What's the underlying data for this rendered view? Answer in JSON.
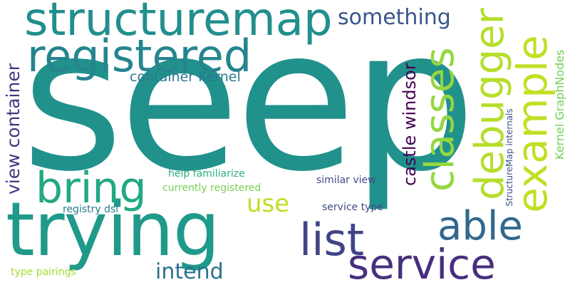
{
  "words": [
    {
      "text": "seep",
      "color": "#21918c"
    },
    {
      "text": "trying",
      "color": "#1f9a8a"
    },
    {
      "text": "structuremap",
      "color": "#218f8d"
    },
    {
      "text": "registered",
      "color": "#25858e"
    },
    {
      "text": "bring",
      "color": "#22a884"
    },
    {
      "text": "example",
      "color": "#c2df23"
    },
    {
      "text": "debugger",
      "color": "#b5de2b"
    },
    {
      "text": "classes",
      "color": "#93d741"
    },
    {
      "text": "service",
      "color": "#472f7d"
    },
    {
      "text": "list",
      "color": "#414487"
    },
    {
      "text": "able",
      "color": "#31688e"
    },
    {
      "text": "something",
      "color": "#39568c"
    },
    {
      "text": "view container",
      "color": "#453781"
    },
    {
      "text": "castle windsor",
      "color": "#440154"
    },
    {
      "text": "container Kernel",
      "color": "#2a788e"
    },
    {
      "text": "use",
      "color": "#bddf26"
    },
    {
      "text": "intend",
      "color": "#2c728e"
    },
    {
      "text": "Kernel GraphNodes",
      "color": "#73d056"
    },
    {
      "text": "StructureMap internals",
      "color": "#3b528b"
    },
    {
      "text": "help familiarize",
      "color": "#29af7f"
    },
    {
      "text": "currently registered",
      "color": "#7ad151"
    },
    {
      "text": "similar view",
      "color": "#3e4a89"
    },
    {
      "text": "registry dsl",
      "color": "#287d8e"
    },
    {
      "text": "service type",
      "color": "#3f4788"
    },
    {
      "text": "type pairings",
      "color": "#a8db34"
    }
  ]
}
